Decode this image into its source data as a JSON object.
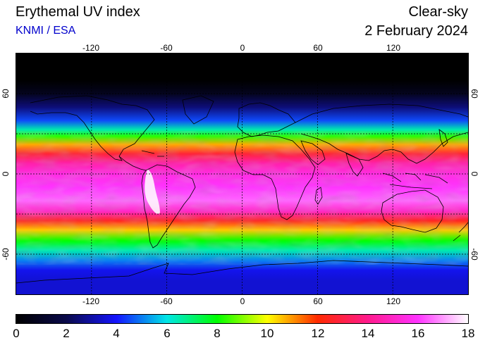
{
  "header": {
    "title": "Erythemal UV index",
    "credit": "KNMI / ESA",
    "mode": "Clear-sky",
    "date": "2 February 2024"
  },
  "map": {
    "projection": "equirectangular",
    "lon_range": [
      -180,
      180
    ],
    "lat_range": [
      -90,
      90
    ],
    "lon_ticks": [
      "-120",
      "-60",
      "0",
      "60",
      "120"
    ],
    "lat_ticks": [
      "60",
      "0",
      "-60"
    ],
    "gridlines": "dotted",
    "coastlines": true
  },
  "colorbar": {
    "range": [
      0,
      18
    ],
    "tick_labels": [
      "0",
      "2",
      "4",
      "6",
      "8",
      "10",
      "12",
      "14",
      "16",
      "18"
    ],
    "stops": [
      {
        "value": 0,
        "color": "#000000"
      },
      {
        "value": 2,
        "color": "#0a0a4a"
      },
      {
        "value": 4,
        "color": "#1414ff"
      },
      {
        "value": 6,
        "color": "#00e6e6"
      },
      {
        "value": 8,
        "color": "#00ff00"
      },
      {
        "value": 10,
        "color": "#ffff00"
      },
      {
        "value": 12,
        "color": "#ff2a00"
      },
      {
        "value": 14,
        "color": "#ff1a8c"
      },
      {
        "value": 16,
        "color": "#ff33ff"
      },
      {
        "value": 18,
        "color": "#ffffff"
      }
    ]
  },
  "uv_zonal_profile": [
    {
      "lat": 90,
      "uv": 0
    },
    {
      "lat": 70,
      "uv": 0
    },
    {
      "lat": 60,
      "uv": 0.8
    },
    {
      "lat": 50,
      "uv": 2.5
    },
    {
      "lat": 40,
      "uv": 4.5
    },
    {
      "lat": 33,
      "uv": 6.5
    },
    {
      "lat": 28,
      "uv": 8.3
    },
    {
      "lat": 22,
      "uv": 10.8
    },
    {
      "lat": 15,
      "uv": 12.8
    },
    {
      "lat": 8,
      "uv": 14.5
    },
    {
      "lat": 0,
      "uv": 15.5
    },
    {
      "lat": -10,
      "uv": 16
    },
    {
      "lat": -20,
      "uv": 16.5
    },
    {
      "lat": -28,
      "uv": 15
    },
    {
      "lat": -35,
      "uv": 12.5
    },
    {
      "lat": -42,
      "uv": 10.5
    },
    {
      "lat": -50,
      "uv": 8
    },
    {
      "lat": -57,
      "uv": 6.5
    },
    {
      "lat": -65,
      "uv": 5
    },
    {
      "lat": -72,
      "uv": 3.8
    },
    {
      "lat": -80,
      "uv": 3.5
    },
    {
      "lat": -90,
      "uv": 3.5
    }
  ]
}
